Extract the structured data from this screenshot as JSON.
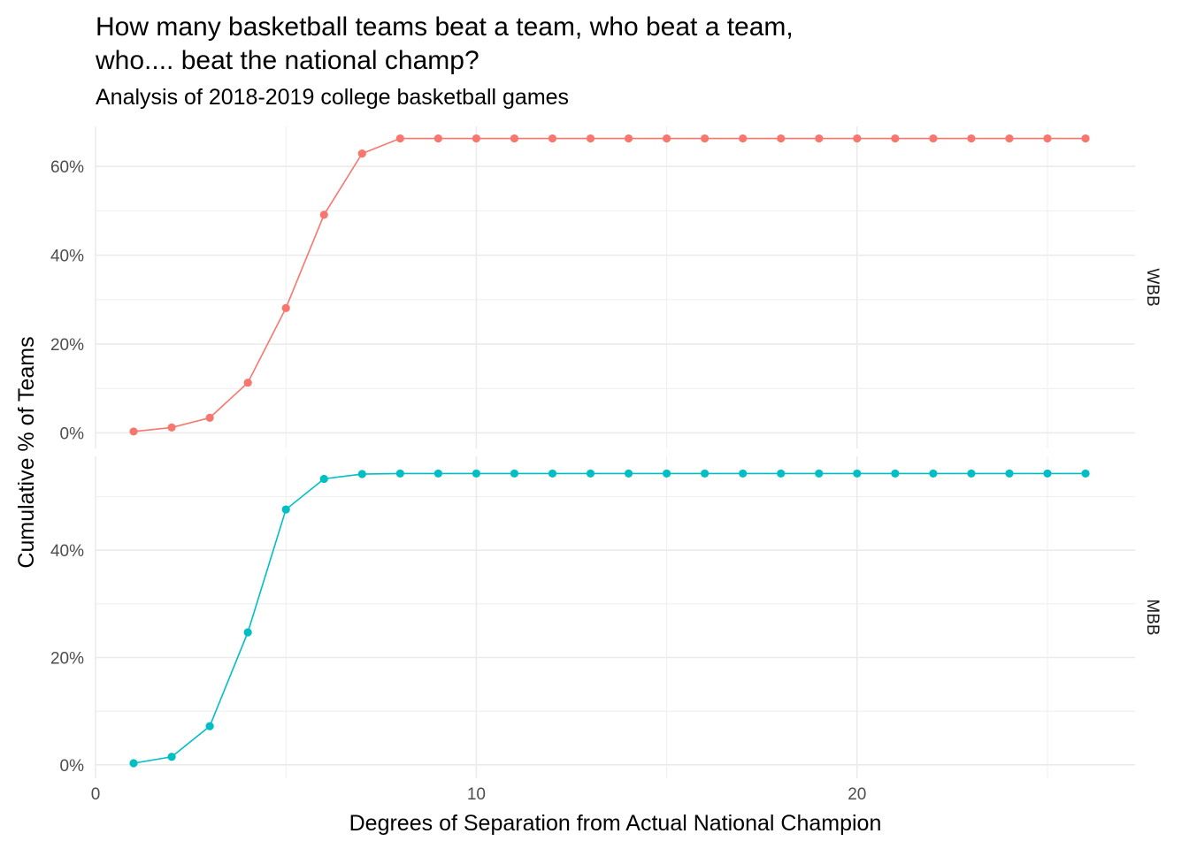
{
  "chart_data": {
    "type": "line",
    "title_line1": "How many basketball teams beat a team, who beat a team,",
    "title_line2": "who.... beat the national champ?",
    "subtitle": "Analysis of 2018-2019 college basketball games",
    "xlabel": "Degrees of Separation from Actual National Champion",
    "ylabel": "Cumulative % of Teams",
    "x_ticks": [
      0,
      10,
      20
    ],
    "x_tick_labels": [
      "0",
      "10",
      "20"
    ],
    "xlim": [
      0,
      27.3
    ],
    "grid": true,
    "facets": [
      {
        "strip": "WBB",
        "color": "#F8766D",
        "ylim": [
          -3.5,
          69
        ],
        "y_ticks": [
          0,
          20,
          40,
          60
        ],
        "y_tick_labels": [
          "0%",
          "20%",
          "40%",
          "60%"
        ],
        "x": [
          1,
          2,
          3,
          4,
          5,
          6,
          7,
          8,
          9,
          10,
          11,
          12,
          13,
          14,
          15,
          16,
          17,
          18,
          19,
          20,
          21,
          22,
          23,
          24,
          25,
          26
        ],
        "values": [
          0.3,
          1.2,
          3.4,
          11.3,
          28.1,
          49.1,
          62.9,
          66.3,
          66.3,
          66.3,
          66.3,
          66.3,
          66.3,
          66.3,
          66.3,
          66.3,
          66.3,
          66.3,
          66.3,
          66.3,
          66.3,
          66.3,
          66.3,
          66.3,
          66.3,
          66.3
        ]
      },
      {
        "strip": "MBB",
        "color": "#00BFC4",
        "ylim": [
          -2.5,
          57.5
        ],
        "y_ticks": [
          0,
          20,
          40
        ],
        "y_tick_labels": [
          "0%",
          "20%",
          "40%"
        ],
        "x": [
          1,
          2,
          3,
          4,
          5,
          6,
          7,
          8,
          9,
          10,
          11,
          12,
          13,
          14,
          15,
          16,
          17,
          18,
          19,
          20,
          21,
          22,
          23,
          24,
          25,
          26
        ],
        "values": [
          0.3,
          1.5,
          7.2,
          24.7,
          47.6,
          53.3,
          54.2,
          54.3,
          54.3,
          54.3,
          54.3,
          54.3,
          54.3,
          54.3,
          54.3,
          54.3,
          54.3,
          54.3,
          54.3,
          54.3,
          54.3,
          54.3,
          54.3,
          54.3,
          54.3,
          54.3
        ]
      }
    ]
  }
}
